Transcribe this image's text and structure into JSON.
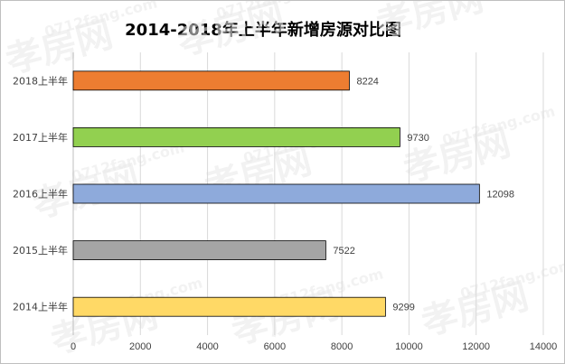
{
  "chart_data": {
    "type": "bar",
    "orientation": "horizontal",
    "title": "2014-2018年上半年新增房源对比图",
    "categories": [
      "2018上半年",
      "2017上半年",
      "2016上半年",
      "2015上半年",
      "2014上半年"
    ],
    "values": [
      8224,
      9730,
      12098,
      7522,
      9299
    ],
    "data_labels": [
      "8224",
      "9730",
      "12098",
      "7522",
      "9299"
    ],
    "colors": [
      "#ed7d31",
      "#92d050",
      "#8eaadb",
      "#a5a5a5",
      "#ffd966"
    ],
    "xlim": [
      0,
      14000
    ],
    "xticks": [
      0,
      2000,
      4000,
      6000,
      8000,
      10000,
      12000,
      14000
    ],
    "grid": true,
    "legend": "none"
  },
  "watermark": {
    "brand": "孝房网",
    "url": "0712fang.com"
  }
}
